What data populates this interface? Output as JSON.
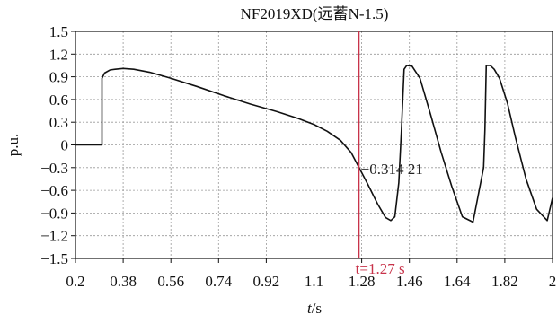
{
  "chart_data": {
    "type": "line",
    "title": "NF2019XD(远蓄N-1.5)",
    "xlabel": "t/s",
    "ylabel": "p.u.",
    "xlim": [
      0.2,
      2.0
    ],
    "ylim": [
      -1.5,
      1.5
    ],
    "xticks": [
      0.2,
      0.38,
      0.56,
      0.74,
      0.92,
      1.1,
      1.28,
      1.46,
      1.64,
      1.82,
      2.0
    ],
    "xtick_labels": [
      "0.2",
      "0.38",
      "0.56",
      "0.74",
      "0.92",
      "1.1",
      "1.28",
      "1.46",
      "1.64",
      "1.82",
      "2"
    ],
    "yticks": [
      1.5,
      1.2,
      0.9,
      0.6,
      0.3,
      0,
      -0.3,
      -0.6,
      -0.9,
      -1.2,
      -1.5
    ],
    "ytick_labels": [
      "1.5",
      "1.2",
      "0.9",
      "0.6",
      "0.3",
      "0",
      "−0.3",
      "−0.6",
      "−0.9",
      "−1.2",
      "−1.5"
    ],
    "grid": true,
    "series": [
      {
        "color": "#111111",
        "x": [
          0.2,
          0.3,
          0.3,
          0.31,
          0.33,
          0.35,
          0.38,
          0.42,
          0.48,
          0.56,
          0.66,
          0.76,
          0.86,
          0.96,
          1.04,
          1.1,
          1.15,
          1.2,
          1.24,
          1.27,
          1.3,
          1.34,
          1.37,
          1.39,
          1.405,
          1.42,
          1.43,
          1.44,
          1.45,
          1.47,
          1.5,
          1.54,
          1.58,
          1.62,
          1.66,
          1.7,
          1.74,
          1.745,
          1.75,
          1.765,
          1.78,
          1.8,
          1.83,
          1.86,
          1.9,
          1.94,
          1.98,
          2.0
        ],
        "y": [
          0,
          0,
          0.88,
          0.95,
          0.99,
          1.0,
          1.01,
          1.0,
          0.96,
          0.88,
          0.77,
          0.65,
          0.54,
          0.44,
          0.35,
          0.27,
          0.18,
          0.06,
          -0.1,
          -0.3,
          -0.5,
          -0.78,
          -0.96,
          -1.0,
          -0.95,
          -0.5,
          0.2,
          1.0,
          1.05,
          1.04,
          0.88,
          0.4,
          -0.1,
          -0.55,
          -0.95,
          -1.02,
          -0.3,
          0.2,
          1.05,
          1.05,
          1.0,
          0.88,
          0.55,
          0.1,
          -0.45,
          -0.85,
          -1.0,
          -0.7
        ]
      }
    ],
    "cursor": {
      "x": 1.27,
      "color": "#c8334a",
      "label": "t=1.27 s",
      "value_label": "−0.314 21"
    }
  }
}
